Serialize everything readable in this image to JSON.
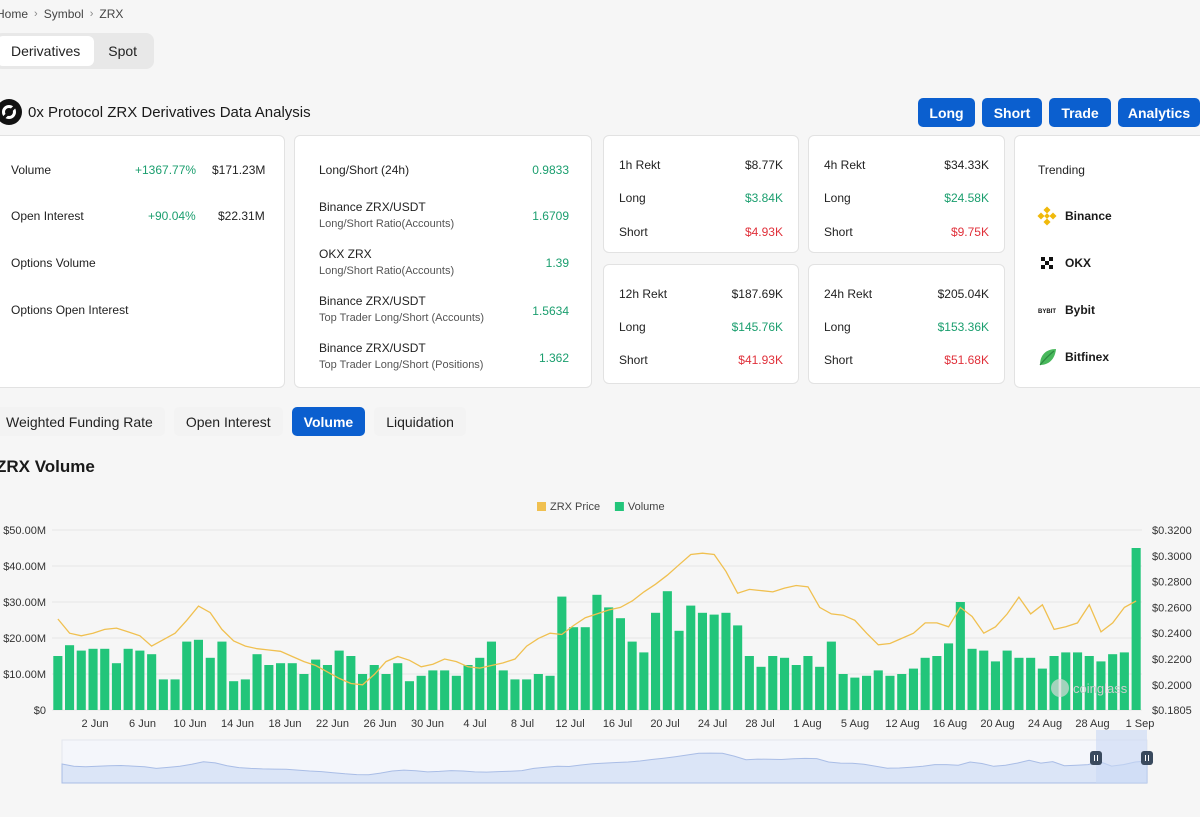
{
  "breadcrumb": {
    "home": "Home",
    "symbol": "Symbol",
    "current": "ZRX"
  },
  "market_tabs": {
    "derivatives": "Derivatives",
    "spot": "Spot"
  },
  "page_title": "0x Protocol ZRX Derivatives Data Analysis",
  "actions": {
    "long": "Long",
    "short": "Short",
    "trade": "Trade",
    "analytics": "Analytics"
  },
  "stats": {
    "volume": {
      "label": "Volume",
      "change": "+1367.77%",
      "value": "$171.23M"
    },
    "open_interest": {
      "label": "Open Interest",
      "change": "+90.04%",
      "value": "$22.31M"
    },
    "options_volume": {
      "label": "Options Volume"
    },
    "options_open_interest": {
      "label": "Options Open Interest"
    }
  },
  "ratios": [
    {
      "title": "Long/Short (24h)",
      "subtitle": "",
      "value": "0.9833"
    },
    {
      "title": "Binance ZRX/USDT",
      "subtitle": "Long/Short Ratio(Accounts)",
      "value": "1.6709"
    },
    {
      "title": "OKX ZRX",
      "subtitle": "Long/Short Ratio(Accounts)",
      "value": "1.39"
    },
    {
      "title": "Binance ZRX/USDT",
      "subtitle": "Top Trader Long/Short (Accounts)",
      "value": "1.5634"
    },
    {
      "title": "Binance ZRX/USDT",
      "subtitle": "Top Trader Long/Short (Positions)",
      "value": "1.362"
    }
  ],
  "rekt": {
    "long_label": "Long",
    "short_label": "Short",
    "h1": {
      "label": "1h Rekt",
      "total": "$8.77K",
      "long": "$3.84K",
      "short": "$4.93K"
    },
    "h4": {
      "label": "4h Rekt",
      "total": "$34.33K",
      "long": "$24.58K",
      "short": "$9.75K"
    },
    "h12": {
      "label": "12h Rekt",
      "total": "$187.69K",
      "long": "$145.76K",
      "short": "$41.93K"
    },
    "h24": {
      "label": "24h Rekt",
      "total": "$205.04K",
      "long": "$153.36K",
      "short": "$51.68K"
    }
  },
  "trending": {
    "title": "Trending",
    "items": [
      {
        "name": "Binance",
        "icon": "binance-icon"
      },
      {
        "name": "OKX",
        "icon": "okx-icon"
      },
      {
        "name": "Bybit",
        "icon": "bybit-icon",
        "icon_text": "BYBIT"
      },
      {
        "name": "Bitfinex",
        "icon": "bitfinex-icon"
      }
    ]
  },
  "chart_tabs": [
    {
      "label": "Weighted Funding Rate",
      "active": false
    },
    {
      "label": "Open Interest",
      "active": false
    },
    {
      "label": "Volume",
      "active": true
    },
    {
      "label": "Liquidation",
      "active": false
    }
  ],
  "section_title": "ZRX Volume",
  "colors": {
    "accent": "#0b5fcf",
    "volume_bar": "#22c57a",
    "price_line": "#f0c050",
    "positive": "#1a9e6e",
    "negative": "#e0303a"
  },
  "watermark": "coinglass",
  "chart_data": {
    "type": "bar",
    "title": "",
    "legend": [
      "ZRX Price",
      "Volume"
    ],
    "legend_position": "top-center",
    "x_tick_labels": [
      "2 Jun",
      "6 Jun",
      "10 Jun",
      "14 Jun",
      "18 Jun",
      "22 Jun",
      "26 Jun",
      "30 Jun",
      "4 Jul",
      "8 Jul",
      "12 Jul",
      "16 Jul",
      "20 Jul",
      "24 Jul",
      "28 Jul",
      "1 Aug",
      "5 Aug",
      "12 Aug",
      "16 Aug",
      "20 Aug",
      "24 Aug",
      "28 Aug",
      "1 Sep"
    ],
    "y_left": {
      "ticks": [
        "$0",
        "$10.00M",
        "$20.00M",
        "$30.00M",
        "$40.00M",
        "$50.00M"
      ],
      "range": [
        0,
        50
      ]
    },
    "y_right": {
      "ticks": [
        "$0.1805",
        "$0.2000",
        "$0.2200",
        "$0.2400",
        "$0.2600",
        "$0.2800",
        "$0.3000",
        "$0.3200"
      ],
      "range": [
        0.1805,
        0.32
      ]
    },
    "series": [
      {
        "name": "Volume",
        "unit": "$M",
        "values": [
          15,
          18,
          16.5,
          17,
          17,
          13,
          17,
          16.5,
          15.5,
          8.5,
          8.5,
          19,
          19.5,
          14.5,
          19,
          8,
          8.5,
          15.5,
          12.5,
          13,
          13,
          10,
          14,
          12.5,
          16.5,
          15,
          10,
          12.5,
          10,
          13,
          8,
          9.5,
          11,
          11,
          9.5,
          12.5,
          14.5,
          19,
          11,
          8.5,
          8.5,
          10,
          9.5,
          31.5,
          23,
          23,
          32,
          28.5,
          25.5,
          19,
          16,
          27,
          33,
          22,
          29,
          27,
          26.5,
          27,
          23.5,
          15,
          12,
          15,
          14.5,
          12.5,
          15,
          12,
          19,
          10,
          9,
          9.5,
          11,
          9.5,
          10,
          11.5,
          14.5,
          15,
          18.5,
          30,
          17,
          16.5,
          13.5,
          16.5,
          14.5,
          14.5,
          11.5,
          15,
          16,
          16,
          15,
          13.5,
          15.5,
          16,
          45
        ]
      },
      {
        "name": "ZRX Price",
        "unit": "$",
        "values": [
          0.251,
          0.24,
          0.238,
          0.24,
          0.243,
          0.244,
          0.241,
          0.238,
          0.23,
          0.235,
          0.24,
          0.25,
          0.261,
          0.256,
          0.243,
          0.234,
          0.23,
          0.228,
          0.227,
          0.226,
          0.222,
          0.218,
          0.215,
          0.21,
          0.205,
          0.201,
          0.2,
          0.208,
          0.218,
          0.222,
          0.219,
          0.214,
          0.216,
          0.22,
          0.218,
          0.214,
          0.213,
          0.215,
          0.217,
          0.22,
          0.23,
          0.236,
          0.24,
          0.239,
          0.246,
          0.252,
          0.255,
          0.258,
          0.26,
          0.265,
          0.272,
          0.278,
          0.285,
          0.293,
          0.301,
          0.302,
          0.301,
          0.288,
          0.271,
          0.274,
          0.273,
          0.272,
          0.275,
          0.277,
          0.276,
          0.26,
          0.255,
          0.254,
          0.25,
          0.24,
          0.231,
          0.232,
          0.236,
          0.24,
          0.248,
          0.248,
          0.245,
          0.26,
          0.253,
          0.24,
          0.245,
          0.255,
          0.268,
          0.255,
          0.262,
          0.243,
          0.245,
          0.248,
          0.262,
          0.241,
          0.248,
          0.26,
          0.265
        ]
      }
    ]
  }
}
